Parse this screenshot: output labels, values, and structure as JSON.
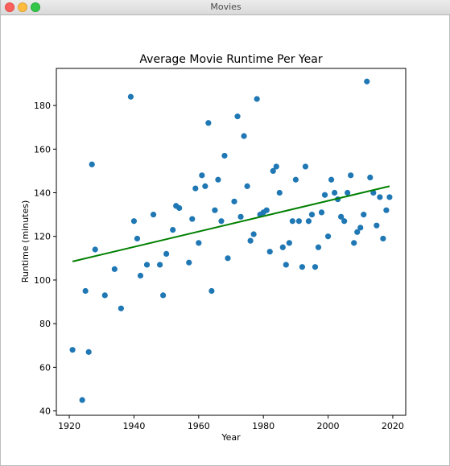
{
  "window": {
    "title": "Movies"
  },
  "chart_data": {
    "type": "scatter",
    "title": "Average Movie Runtime Per Year",
    "xlabel": "Year",
    "ylabel": "Runtime (minutes)",
    "xlim": [
      1916,
      2024
    ],
    "ylim": [
      38,
      197
    ],
    "xticks": [
      1920,
      1940,
      1960,
      1980,
      2000,
      2020
    ],
    "yticks": [
      40,
      60,
      80,
      100,
      120,
      140,
      160,
      180
    ],
    "grid": false,
    "point_color": "#1f77b4",
    "line_color": "#008000",
    "points": [
      [
        1921,
        68
      ],
      [
        1924,
        45
      ],
      [
        1925,
        95
      ],
      [
        1926,
        67
      ],
      [
        1927,
        153
      ],
      [
        1928,
        114
      ],
      [
        1931,
        93
      ],
      [
        1934,
        105
      ],
      [
        1936,
        87
      ],
      [
        1939,
        184
      ],
      [
        1940,
        127
      ],
      [
        1941,
        119
      ],
      [
        1942,
        102
      ],
      [
        1944,
        107
      ],
      [
        1946,
        130
      ],
      [
        1948,
        107
      ],
      [
        1949,
        93
      ],
      [
        1950,
        112
      ],
      [
        1952,
        123
      ],
      [
        1953,
        134
      ],
      [
        1954,
        133
      ],
      [
        1957,
        108
      ],
      [
        1958,
        128
      ],
      [
        1959,
        142
      ],
      [
        1960,
        117
      ],
      [
        1961,
        148
      ],
      [
        1962,
        143
      ],
      [
        1963,
        172
      ],
      [
        1964,
        95
      ],
      [
        1965,
        132
      ],
      [
        1966,
        146
      ],
      [
        1967,
        127
      ],
      [
        1968,
        157
      ],
      [
        1969,
        110
      ],
      [
        1971,
        136
      ],
      [
        1972,
        175
      ],
      [
        1973,
        129
      ],
      [
        1974,
        166
      ],
      [
        1975,
        143
      ],
      [
        1976,
        118
      ],
      [
        1977,
        121
      ],
      [
        1978,
        183
      ],
      [
        1979,
        130
      ],
      [
        1980,
        131
      ],
      [
        1981,
        132
      ],
      [
        1982,
        113
      ],
      [
        1983,
        150
      ],
      [
        1984,
        152
      ],
      [
        1985,
        140
      ],
      [
        1986,
        115
      ],
      [
        1987,
        107
      ],
      [
        1988,
        117
      ],
      [
        1989,
        127
      ],
      [
        1990,
        146
      ],
      [
        1991,
        127
      ],
      [
        1992,
        106
      ],
      [
        1993,
        152
      ],
      [
        1994,
        127
      ],
      [
        1995,
        130
      ],
      [
        1996,
        106
      ],
      [
        1997,
        115
      ],
      [
        1998,
        131
      ],
      [
        1999,
        139
      ],
      [
        2000,
        120
      ],
      [
        2001,
        146
      ],
      [
        2002,
        140
      ],
      [
        2003,
        137
      ],
      [
        2004,
        129
      ],
      [
        2005,
        127
      ],
      [
        2006,
        140
      ],
      [
        2007,
        148
      ],
      [
        2008,
        117
      ],
      [
        2009,
        122
      ],
      [
        2010,
        124
      ],
      [
        2011,
        130
      ],
      [
        2012,
        191
      ],
      [
        2013,
        147
      ],
      [
        2014,
        140
      ],
      [
        2015,
        125
      ],
      [
        2016,
        138
      ],
      [
        2017,
        119
      ],
      [
        2018,
        132
      ],
      [
        2019,
        138
      ]
    ],
    "trendline": {
      "x": [
        1921,
        2019
      ],
      "y": [
        108.5,
        143
      ]
    }
  }
}
